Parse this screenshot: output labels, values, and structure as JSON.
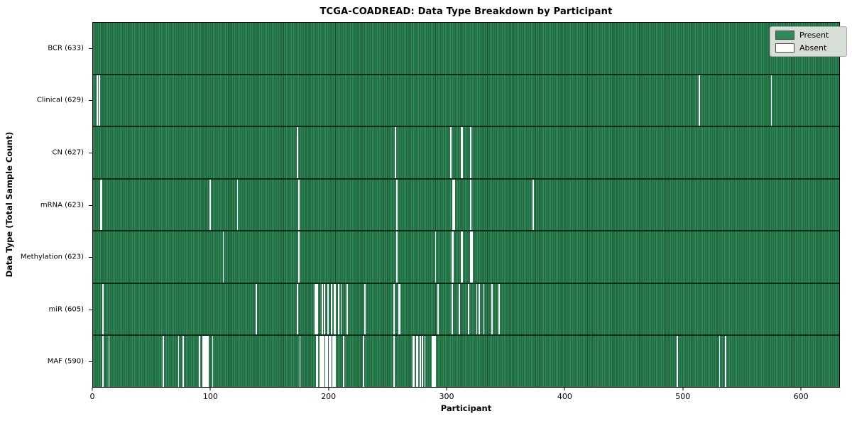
{
  "title": "TCGA-COADREAD: Data Type Breakdown by Participant",
  "colors": {
    "present": "#2e8b57",
    "present_edge": "#1b4c30",
    "absent": "#ffffff",
    "legend_bg": "#d6ded6"
  },
  "chart_data": {
    "type": "heatmap",
    "title": "TCGA-COADREAD: Data Type Breakdown by Participant",
    "xlabel": "Participant",
    "ylabel": "Data Type (Total Sample Count)",
    "x_ticks": [
      0,
      100,
      200,
      300,
      400,
      500,
      600
    ],
    "xlim": [
      0,
      633
    ],
    "n_participants": 633,
    "grid": false,
    "legend_position": "upper right",
    "legend": [
      {
        "label": "Present",
        "color": "#2e8b57"
      },
      {
        "label": "Absent",
        "color": "#ffffff"
      }
    ],
    "rows": [
      {
        "label": "BCR (633)",
        "data_type": "BCR",
        "total_samples": 633,
        "absent_participants": []
      },
      {
        "label": "Clinical (629)",
        "data_type": "Clinical",
        "total_samples": 629,
        "absent_participants": [
          3,
          5,
          514,
          575
        ]
      },
      {
        "label": "CN (627)",
        "data_type": "CN",
        "total_samples": 627,
        "absent_participants": [
          173,
          256,
          303,
          312,
          313,
          320
        ]
      },
      {
        "label": "mRNA (623)",
        "data_type": "mRNA",
        "total_samples": 623,
        "absent_participants": [
          6,
          7,
          99,
          122,
          174,
          257,
          305,
          306,
          320,
          373
        ]
      },
      {
        "label": "Methylation (623)",
        "data_type": "Methylation",
        "total_samples": 623,
        "absent_participants": [
          110,
          174,
          257,
          290,
          304,
          305,
          312,
          313,
          320,
          321
        ]
      },
      {
        "label": "miR (605)",
        "data_type": "miR",
        "total_samples": 605,
        "absent_participants": [
          8,
          138,
          173,
          188,
          189,
          190,
          194,
          196,
          199,
          202,
          204,
          205,
          208,
          210,
          215,
          230,
          255,
          259,
          260,
          292,
          304,
          310,
          318,
          325,
          327,
          331,
          338,
          344
        ]
      },
      {
        "label": "MAF (590)",
        "data_type": "MAF",
        "total_samples": 590,
        "absent_participants": [
          8,
          13,
          59,
          72,
          76,
          90,
          93,
          94,
          95,
          96,
          97,
          101,
          175,
          189,
          190,
          192,
          193,
          194,
          195,
          197,
          198,
          200,
          201,
          203,
          204,
          205,
          212,
          229,
          255,
          271,
          272,
          274,
          275,
          277,
          279,
          281,
          287,
          288,
          289,
          290,
          495,
          531,
          536
        ]
      }
    ]
  }
}
